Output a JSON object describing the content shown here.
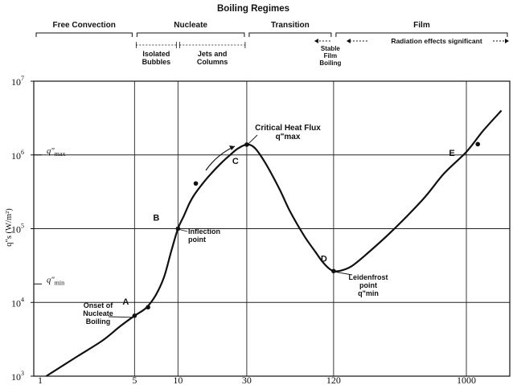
{
  "chart_data": {
    "type": "line",
    "title": "Boiling Regimes",
    "xlabel": "",
    "ylabel": "q\"s (W/m²)",
    "x_scale": "log",
    "y_scale": "log",
    "xlim": [
      1,
      2000
    ],
    "ylim": [
      1000,
      10000000
    ],
    "grid": true,
    "x_ticks": [
      {
        "value": 1,
        "label": "1"
      },
      {
        "value": 5,
        "label": "5"
      },
      {
        "value": 10,
        "label": "10"
      },
      {
        "value": 30,
        "label": "30"
      },
      {
        "value": 120,
        "label": "120"
      },
      {
        "value": 1000,
        "label": "1000"
      }
    ],
    "y_ticks": [
      {
        "value": 1000,
        "label": "10³",
        "base": "10",
        "exp": "3"
      },
      {
        "value": 10000,
        "label": "10⁴",
        "base": "10",
        "exp": "4"
      },
      {
        "value": 100000,
        "label": "10⁵",
        "base": "10",
        "exp": "5"
      },
      {
        "value": 1000000,
        "label": "10⁶",
        "base": "10",
        "exp": "6"
      },
      {
        "value": 10000000,
        "label": "10⁷",
        "base": "10",
        "exp": "7"
      }
    ],
    "y_markers": [
      {
        "value": 1000000,
        "label": "q\"max",
        "base": "q\"",
        "sub": "max"
      },
      {
        "value": 17800,
        "label": "q\"min",
        "base": "q\"",
        "sub": "min"
      }
    ],
    "series": [
      {
        "color": "#111111",
        "points": [
          [
            1.22,
            1000
          ],
          [
            2,
            1850
          ],
          [
            3,
            3050
          ],
          [
            4,
            4800
          ],
          [
            5,
            6600
          ],
          [
            6,
            8400
          ],
          [
            7,
            12500
          ],
          [
            8,
            22000
          ],
          [
            9,
            50000
          ],
          [
            10,
            100000
          ],
          [
            11,
            150000
          ],
          [
            12,
            220000
          ],
          [
            13,
            290000
          ],
          [
            15,
            420000
          ],
          [
            17,
            560000
          ],
          [
            20,
            780000
          ],
          [
            23,
            1000000
          ],
          [
            26,
            1220000
          ],
          [
            30,
            1380000
          ],
          [
            34,
            1250000
          ],
          [
            40,
            800000
          ],
          [
            50,
            360000
          ],
          [
            60,
            170000
          ],
          [
            75,
            80000
          ],
          [
            90,
            48000
          ],
          [
            100,
            36000
          ],
          [
            110,
            29500
          ],
          [
            120,
            26600
          ],
          [
            135,
            27000
          ],
          [
            160,
            31000
          ],
          [
            200,
            44000
          ],
          [
            300,
            90000
          ],
          [
            500,
            250000
          ],
          [
            700,
            560000
          ],
          [
            1000,
            1100000
          ],
          [
            1300,
            2100000
          ],
          [
            1750,
            4000000
          ]
        ]
      }
    ],
    "labeled_points": [
      {
        "label": "A",
        "x": 5,
        "y": 6600
      },
      {
        "label": "B",
        "x": 10,
        "y": 100000
      },
      {
        "label": "C",
        "x": 30,
        "y": 1380000
      },
      {
        "label": "D",
        "x": 120,
        "y": 26600
      },
      {
        "label": "E",
        "x": 1000,
        "y": 1100000
      }
    ],
    "dots": [
      {
        "x": 5,
        "y": 6600
      },
      {
        "x": 6.2,
        "y": 8600
      },
      {
        "x": 10,
        "y": 100000
      },
      {
        "x": 13.3,
        "y": 410000
      },
      {
        "x": 30,
        "y": 1380000
      },
      {
        "x": 120,
        "y": 26600
      },
      {
        "x": 1200,
        "y": 1400000
      }
    ],
    "annotations": [
      {
        "id": "onset",
        "lines": [
          "Onset of",
          "Nucleate",
          "Boiling"
        ]
      },
      {
        "id": "inflection",
        "lines": [
          "Inflection",
          "point"
        ]
      },
      {
        "id": "chf",
        "lines": [
          "Critical Heat Flux",
          "q\"max"
        ]
      },
      {
        "id": "leidenfrost",
        "lines": [
          "Leidenfrost",
          "point",
          "q\"min"
        ]
      }
    ],
    "regimes": {
      "top": [
        {
          "label": "Free Convection",
          "from": 1,
          "to": 5
        },
        {
          "label": "Nucleate",
          "from": 5,
          "to": 30
        },
        {
          "label": "Transition",
          "from": 30,
          "to": 120
        },
        {
          "label": "Film",
          "from": 120,
          "to": 2000
        }
      ],
      "sub": [
        {
          "lines": [
            "Isolated",
            "Bubbles"
          ]
        },
        {
          "lines": [
            "Jets and",
            "Columns"
          ]
        },
        {
          "lines": [
            "Stable",
            "Film",
            "Boiling"
          ]
        },
        {
          "lines": [
            "Radiation effects significant"
          ]
        }
      ]
    }
  }
}
